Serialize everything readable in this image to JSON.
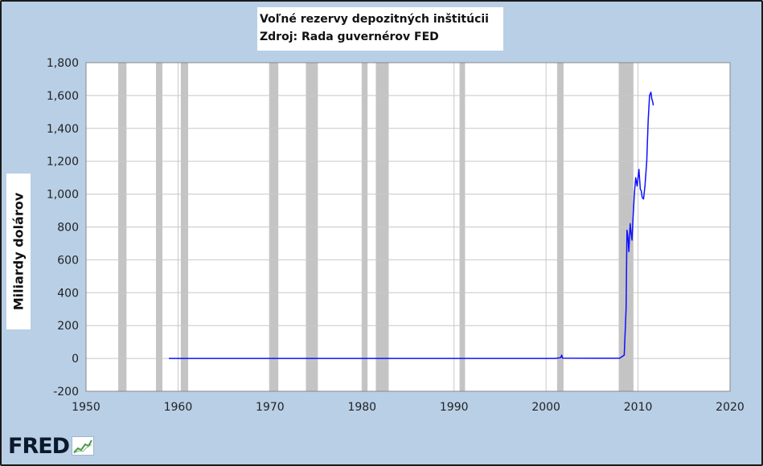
{
  "chart_data": {
    "type": "line",
    "title": "Voľné rezervy depozitných inštitúcii",
    "subtitle": "Zdroj: Rada guvernérov FED",
    "ylabel": "Miliardy dolárov",
    "xlabel": "",
    "xlim": [
      1950,
      2020
    ],
    "ylim": [
      -200,
      1800
    ],
    "x_ticks": [
      1950,
      1960,
      1970,
      1980,
      1990,
      2000,
      2010,
      2020
    ],
    "y_ticks": [
      -200,
      0,
      200,
      400,
      600,
      800,
      1000,
      1200,
      1400,
      1600,
      1800
    ],
    "y_tick_labels": [
      "-200",
      "0",
      "200",
      "400",
      "600",
      "800",
      "1,000",
      "1,200",
      "1,400",
      "1,600",
      "1,800"
    ],
    "grid": true,
    "recessions": [
      [
        1953.5,
        1954.4
      ],
      [
        1957.6,
        1958.3
      ],
      [
        1960.3,
        1961.1
      ],
      [
        1969.9,
        1970.9
      ],
      [
        1973.9,
        1975.2
      ],
      [
        1980.0,
        1980.6
      ],
      [
        1981.5,
        1982.9
      ],
      [
        1990.6,
        1991.2
      ],
      [
        2001.2,
        2001.9
      ],
      [
        2007.9,
        2009.5
      ]
    ],
    "series": [
      {
        "color": "#1010ff",
        "x": [
          1959.0,
          1970.0,
          1980.0,
          1990.0,
          2001.0,
          2001.6,
          2001.7,
          2001.8,
          2005.0,
          2008.0,
          2008.5,
          2008.7,
          2008.8,
          2008.9,
          2009.0,
          2009.15,
          2009.25,
          2009.35,
          2009.45,
          2009.6,
          2009.75,
          2009.9,
          2010.1,
          2010.25,
          2010.35,
          2010.45,
          2010.6,
          2010.75,
          2010.95,
          2011.1,
          2011.25,
          2011.4,
          2011.5,
          2011.6,
          2011.65
        ],
        "y": [
          0,
          0,
          0,
          0,
          0,
          5,
          20,
          2,
          1,
          1,
          20,
          300,
          780,
          740,
          650,
          820,
          760,
          720,
          850,
          1000,
          1100,
          1050,
          1150,
          1030,
          1020,
          980,
          970,
          1050,
          1200,
          1450,
          1600,
          1620,
          1580,
          1560,
          1540
        ]
      }
    ]
  },
  "logo": "FRED",
  "colors": {
    "frame_bg": "#b8cfe6",
    "plot_bg": "#ffffff",
    "grid": "#c8c8c8",
    "recession": "#c4c4c4",
    "line": "#1010ff"
  }
}
